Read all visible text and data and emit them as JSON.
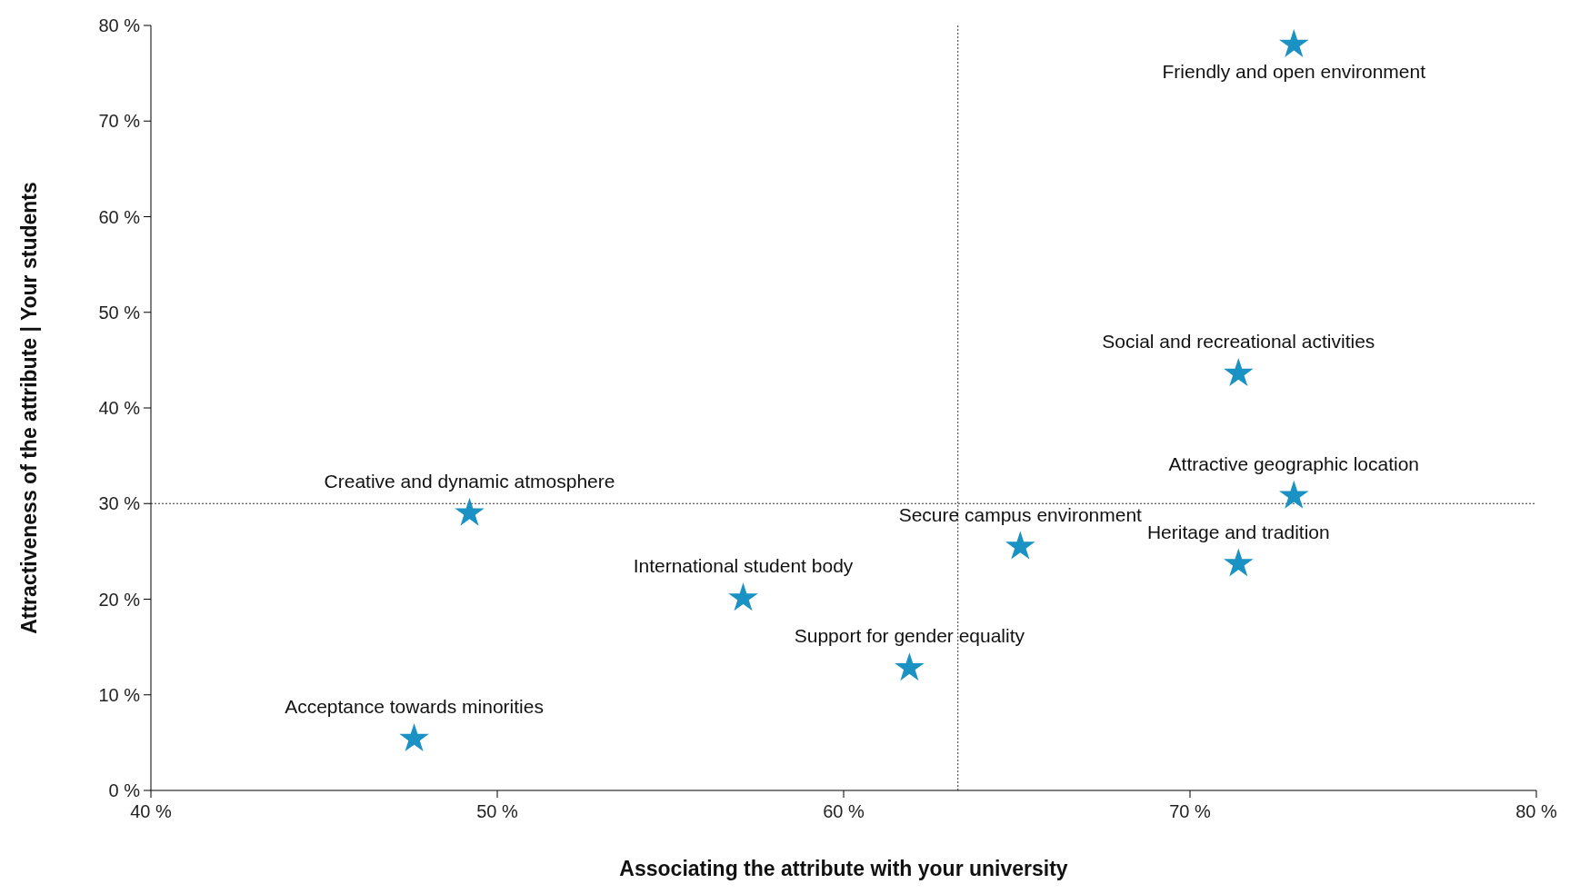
{
  "chart_data": {
    "type": "scatter",
    "xlabel": "Associating the attribute with your university",
    "ylabel": "Attractiveness of the attribute | Your students",
    "x": [
      73.0,
      71.4,
      73.0,
      71.4,
      65.1,
      61.9,
      57.1,
      49.2,
      47.6
    ],
    "series": [
      {
        "color": "#1a92c4",
        "values": [
          78.0,
          43.6,
          30.8,
          23.7,
          25.5,
          12.8,
          20.1,
          29.0,
          5.4
        ]
      }
    ],
    "marker": "star",
    "grid": false,
    "xlim": [
      40,
      80
    ],
    "xticks": [
      {
        "value": 40,
        "label": "40 %"
      },
      {
        "value": 50,
        "label": "50 %"
      },
      {
        "value": 60,
        "label": "60 %"
      },
      {
        "value": 70,
        "label": "70 %"
      },
      {
        "value": 80,
        "label": "80 %"
      }
    ],
    "ylim": [
      0,
      80
    ],
    "yticks": [
      {
        "value": 0,
        "label": "0 %"
      },
      {
        "value": 10,
        "label": "10 %"
      },
      {
        "value": 20,
        "label": "20 %"
      },
      {
        "value": 30,
        "label": "30 %"
      },
      {
        "value": 40,
        "label": "40 %"
      },
      {
        "value": 50,
        "label": "50 %"
      },
      {
        "value": 60,
        "label": "60 %"
      },
      {
        "value": 70,
        "label": "70 %"
      },
      {
        "value": 80,
        "label": "80 %"
      }
    ],
    "ref_lines": [
      {
        "axis": "x",
        "value": 63.3,
        "line_style": "dotted"
      },
      {
        "axis": "y",
        "value": 30,
        "line_style": "dotted"
      }
    ],
    "annotations": [
      {
        "text": "Friendly and open environment",
        "x": 73.0,
        "y": 78.0
      },
      {
        "text": "Social and recreational activities",
        "x": 71.4,
        "y": 43.6
      },
      {
        "text": "Attractive geographic location",
        "x": 73.0,
        "y": 30.8
      },
      {
        "text": "Heritage and tradition",
        "x": 71.4,
        "y": 23.7
      },
      {
        "text": "Secure campus environment",
        "x": 65.1,
        "y": 25.5
      },
      {
        "text": "Support for gender equality",
        "x": 61.9,
        "y": 12.8
      },
      {
        "text": "International student body",
        "x": 57.1,
        "y": 20.1
      },
      {
        "text": "Creative and dynamic atmosphere",
        "x": 49.2,
        "y": 29.0
      },
      {
        "text": "Acceptance towards minorities",
        "x": 47.6,
        "y": 5.4
      }
    ]
  }
}
